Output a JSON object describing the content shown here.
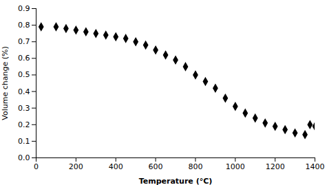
{
  "chart_data": {
    "type": "scatter",
    "x": [
      25,
      100,
      150,
      200,
      250,
      300,
      350,
      400,
      450,
      500,
      550,
      600,
      650,
      700,
      750,
      800,
      850,
      900,
      950,
      1000,
      1050,
      1100,
      1150,
      1200,
      1250,
      1300,
      1350,
      1375,
      1400
    ],
    "values": [
      0.79,
      0.79,
      0.78,
      0.77,
      0.76,
      0.75,
      0.74,
      0.73,
      0.72,
      0.7,
      0.68,
      0.65,
      0.62,
      0.59,
      0.55,
      0.5,
      0.46,
      0.42,
      0.36,
      0.31,
      0.27,
      0.24,
      0.21,
      0.19,
      0.17,
      0.15,
      0.14,
      0.2,
      0.19
    ],
    "marker": "diamond",
    "color": "#000000",
    "xlabel": "Temperature (°C)",
    "ylabel": "Volume change (%)",
    "xlim": [
      0,
      1400
    ],
    "ylim": [
      0,
      0.9
    ],
    "xticks": [
      0,
      200,
      400,
      600,
      800,
      1000,
      1200,
      1400
    ],
    "yticks": [
      {
        "value": 0,
        "label": "0.0"
      },
      0.1,
      0.2,
      0.3,
      0.4,
      0.5,
      0.6,
      0.7,
      0.8,
      0.9
    ],
    "grid": false
  }
}
